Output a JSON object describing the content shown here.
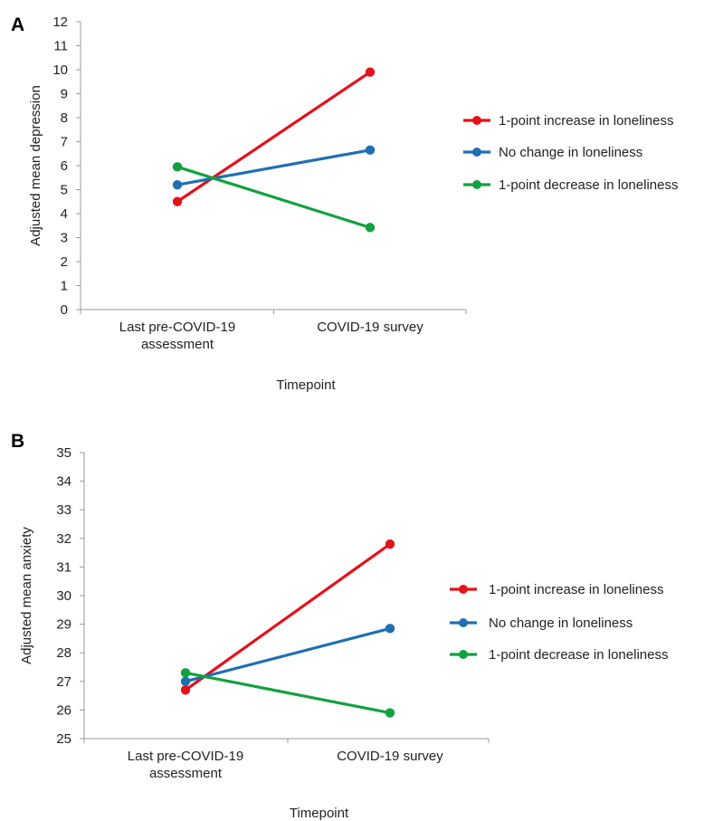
{
  "chart_data": [
    {
      "panel": "A",
      "type": "line",
      "categories": [
        "Last pre-COVID-19\nassessment",
        "COVID-19 survey"
      ],
      "xlabel": "Timepoint",
      "ylabel": "Adjusted mean depression",
      "ylim": [
        0,
        12
      ],
      "ytick_step": 1,
      "legend_position": "right",
      "series": [
        {
          "name": "1-point increase in loneliness",
          "color": "#e3121b",
          "values": [
            4.5,
            9.9
          ]
        },
        {
          "name": "No change in loneliness",
          "color": "#1f6fb4",
          "values": [
            5.2,
            6.65
          ]
        },
        {
          "name": "1-point decrease in loneliness",
          "color": "#12a13f",
          "values": [
            5.95,
            3.42
          ]
        }
      ]
    },
    {
      "panel": "B",
      "type": "line",
      "categories": [
        "Last pre-COVID-19\nassessment",
        "COVID-19 survey"
      ],
      "xlabel": "Timepoint",
      "ylabel": "Adjusted mean anxiety",
      "ylim": [
        25,
        35
      ],
      "ytick_step": 1,
      "legend_position": "right",
      "series": [
        {
          "name": "1-point increase in loneliness",
          "color": "#e3121b",
          "values": [
            26.7,
            31.8
          ]
        },
        {
          "name": "No change in loneliness",
          "color": "#1f6fb4",
          "values": [
            27.0,
            28.85
          ]
        },
        {
          "name": "1-point decrease in loneliness",
          "color": "#12a13f",
          "values": [
            27.3,
            25.9
          ]
        }
      ]
    }
  ]
}
